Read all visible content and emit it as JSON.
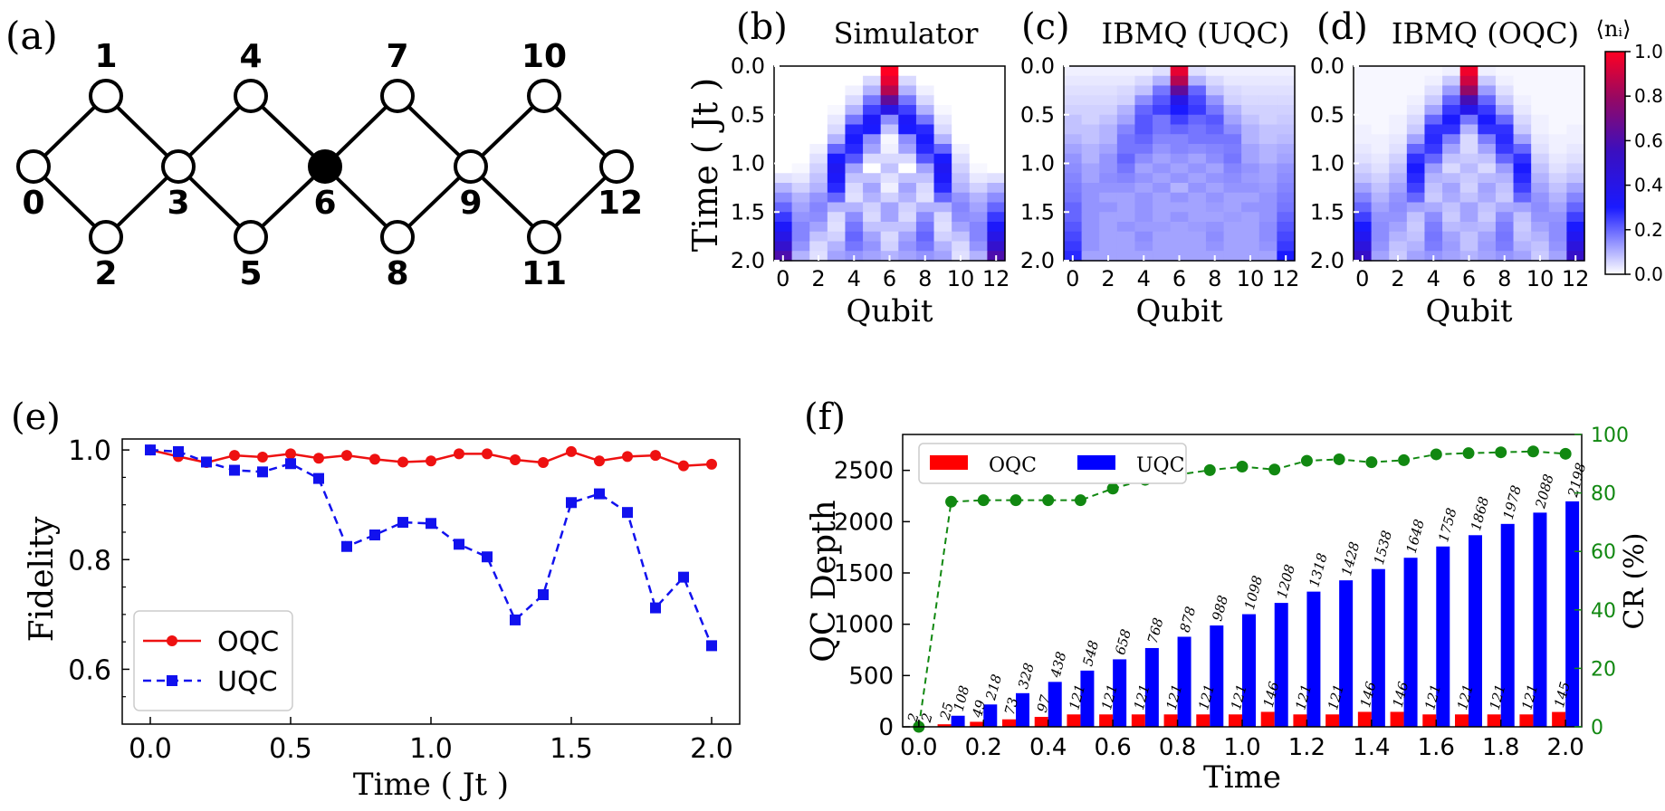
{
  "panel_labels": {
    "a": "(a)",
    "b": "(b)",
    "c": "(c)",
    "d": "(d)",
    "e": "(e)",
    "f": "(f)"
  },
  "lattice": {
    "nodes": [
      "0",
      "1",
      "2",
      "3",
      "4",
      "5",
      "6",
      "7",
      "8",
      "9",
      "10",
      "11",
      "12"
    ],
    "filled_node": "6"
  },
  "heatmaps": {
    "titles": [
      "Simulator",
      "IBMQ (UQC)",
      "IBMQ (OQC)"
    ],
    "ylabel": "Time ( Jt )",
    "xlabel": "Qubit",
    "yticks": [
      "0.0",
      "0.5",
      "1.0",
      "1.5",
      "2.0"
    ],
    "xticks": [
      "0",
      "2",
      "4",
      "6",
      "8",
      "10",
      "12"
    ],
    "colorbar_label": "⟨nᵢ⟩",
    "colorbar_ticks": [
      "0.0",
      "0.2",
      "0.4",
      "0.6",
      "0.8",
      "1.0"
    ],
    "colors": {
      "low": "#ffffff",
      "mid": "#1a1aff",
      "high": "#ff0022"
    }
  },
  "chart_data": [
    {
      "type": "heatmap",
      "title": "Simulator",
      "xlabel": "Qubit",
      "ylabel": "Time ( Jt )",
      "x": [
        0,
        1,
        2,
        3,
        4,
        5,
        6,
        7,
        8,
        9,
        10,
        11,
        12
      ],
      "ylim": [
        0,
        2.0
      ],
      "zlim": [
        0,
        1.0
      ],
      "rows": [
        [
          0.0,
          0.0,
          0.0,
          0.0,
          0.0,
          0.0,
          1.0,
          0.0,
          0.0,
          0.0,
          0.0,
          0.0,
          0.0
        ],
        [
          0.0,
          0.0,
          0.0,
          0.0,
          0.0,
          0.05,
          0.95,
          0.05,
          0.0,
          0.0,
          0.0,
          0.0,
          0.0
        ],
        [
          0.0,
          0.0,
          0.0,
          0.0,
          0.02,
          0.1,
          0.85,
          0.1,
          0.02,
          0.0,
          0.0,
          0.0,
          0.0
        ],
        [
          0.0,
          0.0,
          0.0,
          0.0,
          0.05,
          0.18,
          0.65,
          0.18,
          0.05,
          0.0,
          0.0,
          0.0,
          0.0
        ],
        [
          0.0,
          0.0,
          0.0,
          0.01,
          0.1,
          0.25,
          0.4,
          0.25,
          0.1,
          0.01,
          0.0,
          0.0,
          0.0
        ],
        [
          0.0,
          0.0,
          0.0,
          0.03,
          0.18,
          0.32,
          0.15,
          0.32,
          0.18,
          0.03,
          0.0,
          0.0,
          0.0
        ],
        [
          0.0,
          0.0,
          0.0,
          0.05,
          0.28,
          0.3,
          0.08,
          0.3,
          0.28,
          0.05,
          0.0,
          0.0,
          0.0
        ],
        [
          0.0,
          0.0,
          0.0,
          0.1,
          0.3,
          0.15,
          0.01,
          0.15,
          0.3,
          0.1,
          0.0,
          0.0,
          0.0
        ],
        [
          0.0,
          0.0,
          0.02,
          0.2,
          0.28,
          0.12,
          0.02,
          0.12,
          0.28,
          0.2,
          0.02,
          0.0,
          0.0
        ],
        [
          0.0,
          0.0,
          0.04,
          0.3,
          0.22,
          0.05,
          0.05,
          0.05,
          0.22,
          0.3,
          0.04,
          0.0,
          0.0
        ],
        [
          0.0,
          0.01,
          0.06,
          0.35,
          0.12,
          0.0,
          0.08,
          0.0,
          0.12,
          0.35,
          0.06,
          0.01,
          0.0
        ],
        [
          0.04,
          0.03,
          0.08,
          0.32,
          0.08,
          0.08,
          0.04,
          0.08,
          0.08,
          0.32,
          0.08,
          0.03,
          0.04
        ],
        [
          0.1,
          0.06,
          0.1,
          0.28,
          0.05,
          0.12,
          0.02,
          0.12,
          0.05,
          0.28,
          0.1,
          0.06,
          0.1
        ],
        [
          0.15,
          0.1,
          0.14,
          0.2,
          0.04,
          0.1,
          0.06,
          0.1,
          0.04,
          0.2,
          0.14,
          0.1,
          0.15
        ],
        [
          0.2,
          0.12,
          0.16,
          0.1,
          0.1,
          0.06,
          0.12,
          0.06,
          0.1,
          0.1,
          0.16,
          0.12,
          0.2
        ],
        [
          0.26,
          0.14,
          0.15,
          0.05,
          0.15,
          0.05,
          0.12,
          0.05,
          0.15,
          0.05,
          0.15,
          0.14,
          0.26
        ],
        [
          0.32,
          0.16,
          0.12,
          0.04,
          0.18,
          0.08,
          0.08,
          0.08,
          0.18,
          0.04,
          0.12,
          0.16,
          0.32
        ],
        [
          0.4,
          0.16,
          0.08,
          0.06,
          0.2,
          0.12,
          0.05,
          0.12,
          0.2,
          0.06,
          0.08,
          0.16,
          0.4
        ],
        [
          0.5,
          0.14,
          0.05,
          0.1,
          0.18,
          0.14,
          0.06,
          0.14,
          0.18,
          0.1,
          0.05,
          0.14,
          0.5
        ],
        [
          0.6,
          0.1,
          0.04,
          0.12,
          0.14,
          0.12,
          0.1,
          0.12,
          0.14,
          0.12,
          0.04,
          0.1,
          0.6
        ]
      ]
    },
    {
      "type": "heatmap",
      "title": "IBMQ (UQC)",
      "xlabel": "Qubit",
      "ylabel": "Time ( Jt )",
      "x": [
        0,
        1,
        2,
        3,
        4,
        5,
        6,
        7,
        8,
        9,
        10,
        11,
        12
      ],
      "ylim": [
        0,
        2.0
      ],
      "zlim": [
        0,
        1.0
      ],
      "rows": [
        [
          0.02,
          0.02,
          0.02,
          0.02,
          0.02,
          0.04,
          0.95,
          0.04,
          0.02,
          0.02,
          0.02,
          0.02,
          0.02
        ],
        [
          0.03,
          0.03,
          0.03,
          0.03,
          0.05,
          0.1,
          0.85,
          0.1,
          0.05,
          0.03,
          0.03,
          0.03,
          0.03
        ],
        [
          0.04,
          0.04,
          0.04,
          0.05,
          0.08,
          0.18,
          0.65,
          0.2,
          0.08,
          0.05,
          0.04,
          0.04,
          0.04
        ],
        [
          0.05,
          0.05,
          0.05,
          0.06,
          0.15,
          0.22,
          0.4,
          0.24,
          0.14,
          0.06,
          0.05,
          0.05,
          0.05
        ],
        [
          0.06,
          0.06,
          0.06,
          0.1,
          0.2,
          0.25,
          0.3,
          0.26,
          0.18,
          0.1,
          0.06,
          0.06,
          0.06
        ],
        [
          0.08,
          0.06,
          0.08,
          0.12,
          0.22,
          0.18,
          0.25,
          0.2,
          0.22,
          0.12,
          0.08,
          0.06,
          0.07
        ],
        [
          0.08,
          0.08,
          0.1,
          0.16,
          0.22,
          0.18,
          0.2,
          0.18,
          0.2,
          0.15,
          0.1,
          0.08,
          0.08
        ],
        [
          0.1,
          0.08,
          0.1,
          0.18,
          0.2,
          0.16,
          0.16,
          0.18,
          0.18,
          0.18,
          0.1,
          0.08,
          0.09
        ],
        [
          0.12,
          0.1,
          0.12,
          0.18,
          0.18,
          0.14,
          0.16,
          0.15,
          0.16,
          0.17,
          0.12,
          0.1,
          0.11
        ],
        [
          0.14,
          0.1,
          0.14,
          0.2,
          0.15,
          0.12,
          0.14,
          0.12,
          0.15,
          0.18,
          0.12,
          0.1,
          0.12
        ],
        [
          0.15,
          0.12,
          0.14,
          0.18,
          0.12,
          0.14,
          0.12,
          0.14,
          0.12,
          0.16,
          0.14,
          0.12,
          0.14
        ],
        [
          0.16,
          0.12,
          0.15,
          0.16,
          0.14,
          0.12,
          0.14,
          0.12,
          0.14,
          0.15,
          0.13,
          0.12,
          0.15
        ],
        [
          0.17,
          0.14,
          0.14,
          0.14,
          0.12,
          0.14,
          0.1,
          0.14,
          0.12,
          0.14,
          0.14,
          0.13,
          0.16
        ],
        [
          0.18,
          0.14,
          0.12,
          0.12,
          0.14,
          0.12,
          0.14,
          0.12,
          0.14,
          0.12,
          0.12,
          0.14,
          0.17
        ],
        [
          0.2,
          0.14,
          0.14,
          0.12,
          0.14,
          0.12,
          0.12,
          0.12,
          0.13,
          0.12,
          0.14,
          0.14,
          0.18
        ],
        [
          0.2,
          0.14,
          0.12,
          0.12,
          0.14,
          0.12,
          0.14,
          0.12,
          0.12,
          0.13,
          0.12,
          0.14,
          0.2
        ],
        [
          0.22,
          0.14,
          0.12,
          0.14,
          0.13,
          0.13,
          0.12,
          0.13,
          0.14,
          0.12,
          0.12,
          0.15,
          0.22
        ],
        [
          0.24,
          0.14,
          0.12,
          0.12,
          0.15,
          0.12,
          0.12,
          0.12,
          0.15,
          0.12,
          0.12,
          0.15,
          0.24
        ],
        [
          0.26,
          0.14,
          0.12,
          0.12,
          0.14,
          0.12,
          0.12,
          0.12,
          0.14,
          0.12,
          0.12,
          0.14,
          0.26
        ],
        [
          0.28,
          0.12,
          0.12,
          0.12,
          0.12,
          0.12,
          0.12,
          0.12,
          0.12,
          0.12,
          0.12,
          0.12,
          0.3
        ]
      ]
    },
    {
      "type": "heatmap",
      "title": "IBMQ (OQC)",
      "xlabel": "Qubit",
      "ylabel": "Time ( Jt )",
      "x": [
        0,
        1,
        2,
        3,
        4,
        5,
        6,
        7,
        8,
        9,
        10,
        11,
        12
      ],
      "ylim": [
        0,
        2.0
      ],
      "zlim": [
        0,
        1.0
      ],
      "rows": [
        [
          0.01,
          0.01,
          0.01,
          0.01,
          0.01,
          0.02,
          0.97,
          0.02,
          0.01,
          0.01,
          0.01,
          0.01,
          0.01
        ],
        [
          0.01,
          0.01,
          0.01,
          0.01,
          0.02,
          0.07,
          0.9,
          0.07,
          0.02,
          0.01,
          0.01,
          0.01,
          0.01
        ],
        [
          0.01,
          0.01,
          0.01,
          0.01,
          0.04,
          0.13,
          0.78,
          0.13,
          0.04,
          0.01,
          0.01,
          0.01,
          0.01
        ],
        [
          0.01,
          0.01,
          0.01,
          0.02,
          0.07,
          0.2,
          0.58,
          0.2,
          0.07,
          0.02,
          0.01,
          0.01,
          0.01
        ],
        [
          0.01,
          0.01,
          0.01,
          0.03,
          0.12,
          0.26,
          0.38,
          0.26,
          0.12,
          0.03,
          0.01,
          0.01,
          0.01
        ],
        [
          0.01,
          0.01,
          0.02,
          0.05,
          0.2,
          0.3,
          0.18,
          0.3,
          0.2,
          0.05,
          0.02,
          0.01,
          0.01
        ],
        [
          0.02,
          0.01,
          0.02,
          0.07,
          0.27,
          0.27,
          0.1,
          0.27,
          0.27,
          0.07,
          0.02,
          0.01,
          0.02
        ],
        [
          0.02,
          0.02,
          0.03,
          0.12,
          0.28,
          0.17,
          0.05,
          0.17,
          0.28,
          0.12,
          0.03,
          0.02,
          0.02
        ],
        [
          0.03,
          0.02,
          0.04,
          0.2,
          0.26,
          0.12,
          0.05,
          0.12,
          0.26,
          0.2,
          0.04,
          0.02,
          0.03
        ],
        [
          0.04,
          0.03,
          0.06,
          0.27,
          0.2,
          0.08,
          0.07,
          0.08,
          0.2,
          0.27,
          0.06,
          0.03,
          0.04
        ],
        [
          0.06,
          0.04,
          0.08,
          0.3,
          0.13,
          0.05,
          0.09,
          0.05,
          0.13,
          0.3,
          0.08,
          0.04,
          0.06
        ],
        [
          0.08,
          0.06,
          0.1,
          0.28,
          0.1,
          0.09,
          0.07,
          0.09,
          0.1,
          0.28,
          0.1,
          0.06,
          0.08
        ],
        [
          0.12,
          0.08,
          0.12,
          0.25,
          0.08,
          0.12,
          0.06,
          0.12,
          0.08,
          0.25,
          0.12,
          0.08,
          0.12
        ],
        [
          0.16,
          0.1,
          0.14,
          0.2,
          0.07,
          0.11,
          0.08,
          0.11,
          0.07,
          0.2,
          0.14,
          0.1,
          0.16
        ],
        [
          0.2,
          0.12,
          0.15,
          0.12,
          0.11,
          0.08,
          0.12,
          0.08,
          0.11,
          0.12,
          0.15,
          0.12,
          0.2
        ],
        [
          0.25,
          0.14,
          0.14,
          0.08,
          0.15,
          0.07,
          0.12,
          0.07,
          0.15,
          0.08,
          0.14,
          0.14,
          0.25
        ],
        [
          0.3,
          0.15,
          0.12,
          0.07,
          0.17,
          0.09,
          0.1,
          0.09,
          0.17,
          0.07,
          0.12,
          0.15,
          0.3
        ],
        [
          0.36,
          0.15,
          0.1,
          0.08,
          0.18,
          0.12,
          0.08,
          0.12,
          0.18,
          0.08,
          0.1,
          0.15,
          0.36
        ],
        [
          0.44,
          0.14,
          0.08,
          0.1,
          0.17,
          0.13,
          0.08,
          0.13,
          0.17,
          0.1,
          0.08,
          0.14,
          0.44
        ],
        [
          0.52,
          0.12,
          0.07,
          0.12,
          0.14,
          0.12,
          0.1,
          0.12,
          0.14,
          0.12,
          0.07,
          0.12,
          0.52
        ]
      ]
    },
    {
      "type": "line",
      "xlabel": "Time ( Jt )",
      "ylabel": "Fidelity",
      "xlim": [
        -0.1,
        2.1
      ],
      "ylim": [
        0.5,
        1.02
      ],
      "xticks": [
        "0.0",
        "0.5",
        "1.0",
        "1.5",
        "2.0"
      ],
      "yticks": [
        "0.6",
        "0.8",
        "1.0"
      ],
      "legend_position": "bottom-left",
      "x": [
        0.0,
        0.1,
        0.2,
        0.3,
        0.4,
        0.5,
        0.6,
        0.7,
        0.8,
        0.9,
        1.0,
        1.1,
        1.2,
        1.3,
        1.4,
        1.5,
        1.6,
        1.7,
        1.8,
        1.9,
        2.0
      ],
      "series": [
        {
          "name": "OQC",
          "color": "#ee1111",
          "marker": "circle",
          "dash": "solid",
          "values": [
            1.0,
            0.988,
            0.977,
            0.99,
            0.987,
            0.993,
            0.985,
            0.99,
            0.983,
            0.978,
            0.98,
            0.993,
            0.993,
            0.982,
            0.977,
            0.997,
            0.98,
            0.988,
            0.99,
            0.971,
            0.974
          ]
        },
        {
          "name": "UQC",
          "color": "#1111ee",
          "marker": "square",
          "dash": "dashed",
          "values": [
            1.0,
            0.997,
            0.978,
            0.963,
            0.96,
            0.975,
            0.948,
            0.824,
            0.845,
            0.868,
            0.866,
            0.828,
            0.805,
            0.69,
            0.736,
            0.904,
            0.92,
            0.886,
            0.712,
            0.768,
            0.643
          ]
        }
      ]
    },
    {
      "type": "bar",
      "xlabel": "Time",
      "ylabel": "QC Depth",
      "y2label": "CR (%)",
      "xlim": [
        -0.05,
        2.05
      ],
      "ylim": [
        0,
        2850
      ],
      "y2lim": [
        0,
        100
      ],
      "xticks": [
        "0.0",
        "0.2",
        "0.4",
        "0.6",
        "0.8",
        "1.0",
        "1.2",
        "1.4",
        "1.6",
        "1.8",
        "2.0"
      ],
      "yticks": [
        "0",
        "500",
        "1000",
        "1500",
        "2000",
        "2500"
      ],
      "y2ticks": [
        "0",
        "20",
        "40",
        "60",
        "80",
        "100"
      ],
      "legend_position": "top-left",
      "x": [
        0.0,
        0.1,
        0.2,
        0.3,
        0.4,
        0.5,
        0.6,
        0.7,
        0.8,
        0.9,
        1.0,
        1.1,
        1.2,
        1.3,
        1.4,
        1.5,
        1.6,
        1.7,
        1.8,
        1.9,
        2.0
      ],
      "series": [
        {
          "name": "OQC",
          "color": "#ff0000",
          "values": [
            2,
            25,
            49,
            73,
            97,
            121,
            121,
            121,
            121,
            121,
            121,
            146,
            121,
            121,
            146,
            146,
            121,
            121,
            121,
            121,
            145
          ]
        },
        {
          "name": "UQC",
          "color": "#0000ff",
          "values": [
            2,
            108,
            218,
            328,
            438,
            548,
            658,
            768,
            878,
            988,
            1098,
            1208,
            1318,
            1428,
            1538,
            1648,
            1758,
            1868,
            1978,
            2088,
            2198
          ]
        }
      ],
      "cr_series": {
        "color": "#118811",
        "values": [
          0,
          77,
          77.5,
          77.5,
          77.5,
          77.5,
          81.5,
          84.5,
          86.2,
          87.8,
          89,
          88.0,
          91.0,
          91.5,
          90.5,
          91.2,
          93.2,
          93.6,
          93.9,
          94.2,
          93.4
        ]
      }
    }
  ]
}
